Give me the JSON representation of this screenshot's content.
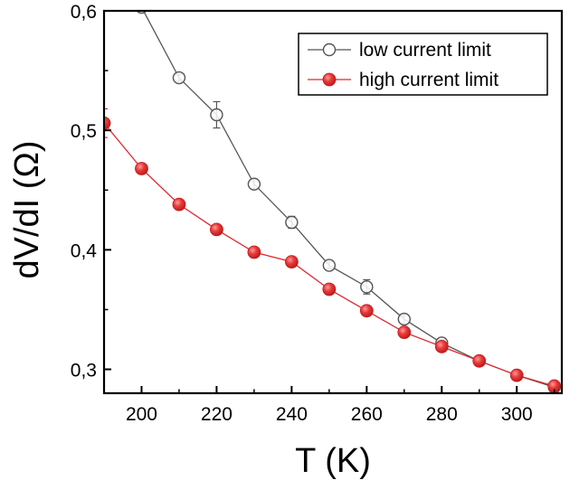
{
  "chart_data": {
    "type": "line",
    "xlabel": "T (K)",
    "ylabel": "dV/dI (Ω)",
    "xlim": [
      190,
      312
    ],
    "ylim": [
      0.28,
      0.6
    ],
    "x_ticks": [
      200,
      220,
      240,
      260,
      280,
      300
    ],
    "x_tick_labels": [
      "200",
      "220",
      "240",
      "260",
      "280",
      "300"
    ],
    "y_ticks": [
      0.3,
      0.4,
      0.5,
      0.6
    ],
    "y_tick_labels": [
      "0,3",
      "0,4",
      "0,5",
      "0,6"
    ],
    "grid": false,
    "legend_position": "top-right",
    "series": [
      {
        "name": "low current limit",
        "marker": "open-circle",
        "color": "#555555",
        "x": [
          200,
          210,
          220,
          230,
          240,
          250,
          260,
          270,
          280,
          290,
          300,
          310
        ],
        "y": [
          0.603,
          0.544,
          0.513,
          0.455,
          0.423,
          0.387,
          0.369,
          0.342,
          0.322,
          0.307,
          0.295,
          0.285
        ],
        "yerr": [
          0.003,
          0.003,
          0.011,
          0.004,
          0.005,
          0.003,
          0.006,
          0.004,
          0.003,
          0.002,
          0.002,
          0.002
        ]
      },
      {
        "name": "high current limit",
        "marker": "filled-circle",
        "color": "#e0282c",
        "x": [
          190,
          200,
          210,
          220,
          230,
          240,
          250,
          260,
          270,
          280,
          290,
          300,
          310
        ],
        "y": [
          0.506,
          0.468,
          0.438,
          0.417,
          0.398,
          0.39,
          0.367,
          0.349,
          0.331,
          0.319,
          0.307,
          0.295,
          0.286
        ],
        "yerr": [
          0.012,
          0,
          0,
          0,
          0,
          0,
          0,
          0,
          0,
          0,
          0,
          0,
          0
        ]
      }
    ]
  }
}
